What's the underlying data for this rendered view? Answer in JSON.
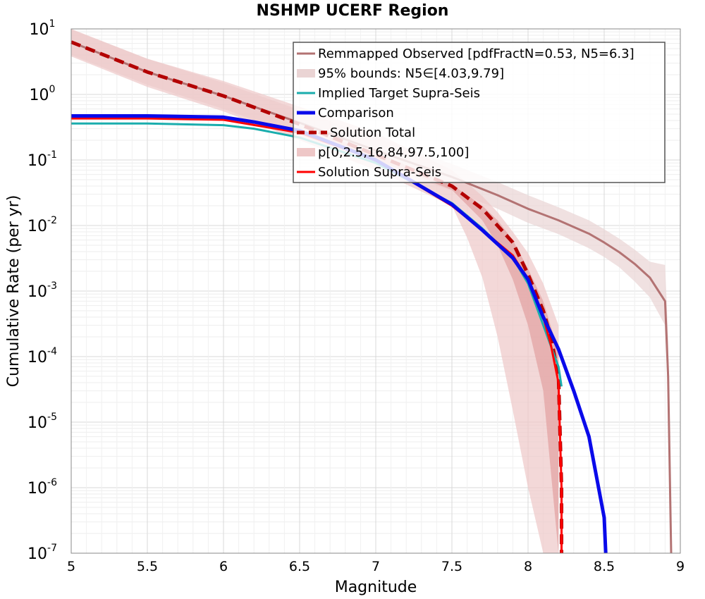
{
  "chart_data": {
    "type": "line",
    "title": "NSHMP UCERF Region",
    "xlabel": "Magnitude",
    "ylabel": "Cumulative Rate (per yr)",
    "xlim": [
      5,
      9
    ],
    "ylim": [
      1e-07,
      10
    ],
    "yscale": "log",
    "grid": true,
    "legend_position": "top-right",
    "x_ticks": [
      "5",
      "5.5",
      "6",
      "6.5",
      "7",
      "7.5",
      "8",
      "8.5",
      "9"
    ],
    "y_ticks": [
      {
        "base": "10",
        "exp": "1"
      },
      {
        "base": "10",
        "exp": "0"
      },
      {
        "base": "10",
        "exp": "-1"
      },
      {
        "base": "10",
        "exp": "-2"
      },
      {
        "base": "10",
        "exp": "-3"
      },
      {
        "base": "10",
        "exp": "-4"
      },
      {
        "base": "10",
        "exp": "-5"
      },
      {
        "base": "10",
        "exp": "-6"
      },
      {
        "base": "10",
        "exp": "-7"
      }
    ],
    "legend": [
      {
        "label": "Remmapped Observed [pdfFractN=0.53, N5=6.3]",
        "color": "#b37373",
        "style": "line"
      },
      {
        "label": "95% bounds: N5∈[4.03,9.79]",
        "color": "#ead4d4",
        "style": "band"
      },
      {
        "label": "Implied Target Supra-Seis",
        "color": "#1aadad",
        "style": "line"
      },
      {
        "label": "Comparison",
        "color": "#0a0aea",
        "style": "thick-line"
      },
      {
        "label": "Solution Total",
        "color": "#b30000",
        "style": "dashed"
      },
      {
        "label": "p[0,2.5,16,84,97.5,100]",
        "color": "#eec7c7",
        "style": "band"
      },
      {
        "label": "Solution Supra-Seis",
        "color": "#ff0000",
        "style": "line"
      }
    ],
    "series": [
      {
        "name": "Remmapped Observed [pdfFractN=0.53, N5=6.3]",
        "color": "#b37373",
        "x": [
          5.0,
          5.5,
          6.0,
          6.5,
          7.0,
          7.5,
          7.8,
          8.0,
          8.2,
          8.4,
          8.5,
          8.6,
          8.7,
          8.8,
          8.9,
          8.92,
          8.94
        ],
        "y": [
          6.3,
          2.2,
          0.95,
          0.37,
          0.14,
          0.055,
          0.029,
          0.018,
          0.012,
          0.0075,
          0.0055,
          0.0039,
          0.0026,
          0.0016,
          0.0007,
          5e-05,
          1e-07
        ]
      },
      {
        "name": "Solution Total",
        "color": "#b30000",
        "x": [
          5.0,
          5.5,
          6.0,
          6.5,
          7.0,
          7.5,
          7.7,
          7.9,
          8.0,
          8.1,
          8.15,
          8.2,
          8.22,
          8.22
        ],
        "y": [
          6.3,
          2.2,
          0.95,
          0.35,
          0.12,
          0.04,
          0.018,
          0.0055,
          0.0018,
          0.0005,
          0.0002,
          5e-05,
          1e-06,
          1e-07
        ]
      },
      {
        "name": "Implied Target Supra-Seis",
        "color": "#1aadad",
        "x": [
          5.0,
          5.5,
          6.0,
          6.2,
          6.5,
          7.0,
          7.5,
          7.7,
          7.9,
          8.0,
          8.1,
          8.2,
          8.22
        ],
        "y": [
          0.36,
          0.36,
          0.34,
          0.3,
          0.22,
          0.09,
          0.022,
          0.009,
          0.0032,
          0.0013,
          0.0003,
          7e-05,
          3.5e-05
        ]
      },
      {
        "name": "Solution Supra-Seis",
        "color": "#ff0000",
        "x": [
          5.0,
          5.5,
          6.0,
          6.5,
          7.0,
          7.5,
          7.7,
          7.9,
          8.0,
          8.1,
          8.15,
          8.2,
          8.22,
          8.22
        ],
        "y": [
          0.43,
          0.43,
          0.41,
          0.26,
          0.1,
          0.02,
          0.0085,
          0.0035,
          0.0015,
          0.0004,
          0.00015,
          4e-05,
          1e-06,
          1e-07
        ]
      },
      {
        "name": "Comparison",
        "color": "#0a0aea",
        "x": [
          5.0,
          5.5,
          6.0,
          6.2,
          6.5,
          7.0,
          7.5,
          7.7,
          7.9,
          8.0,
          8.1,
          8.2,
          8.3,
          8.4,
          8.5,
          8.51
        ],
        "y": [
          0.47,
          0.47,
          0.45,
          0.38,
          0.28,
          0.1,
          0.021,
          0.0085,
          0.0032,
          0.0015,
          0.0004,
          0.00013,
          3e-05,
          6e-06,
          3.5e-07,
          1e-07
        ]
      }
    ],
    "bands": [
      {
        "name": "95% bounds: N5∈[4.03,9.79]",
        "color": "#ead4d4",
        "x": [
          5.0,
          5.5,
          6.0,
          6.5,
          7.0,
          7.5,
          7.8,
          8.0,
          8.2,
          8.4,
          8.5,
          8.6,
          8.7,
          8.8,
          8.9,
          8.92,
          8.94
        ],
        "upper": [
          9.8,
          3.5,
          1.5,
          0.58,
          0.22,
          0.087,
          0.046,
          0.029,
          0.019,
          0.012,
          0.0088,
          0.0063,
          0.0043,
          0.0028,
          0.0025,
          0.0002,
          1e-07
        ],
        "lower": [
          4.0,
          1.4,
          0.6,
          0.23,
          0.088,
          0.034,
          0.018,
          0.011,
          0.0074,
          0.0045,
          0.0033,
          0.0023,
          0.0014,
          0.0008,
          0.0003,
          2e-05,
          1e-07
        ]
      },
      {
        "name": "p[0,2.5,16,84,97.5,100] outer",
        "color": "#eec7c7",
        "x": [
          5.0,
          5.5,
          6.0,
          6.5,
          7.0,
          7.5,
          7.6,
          7.7,
          7.8,
          7.9,
          8.0,
          8.1,
          8.2
        ],
        "upper": [
          10,
          3.5,
          1.6,
          0.65,
          0.26,
          0.07,
          0.045,
          0.028,
          0.016,
          0.008,
          0.0038,
          0.0013,
          0.0003
        ],
        "lower": [
          3.8,
          1.3,
          0.55,
          0.2,
          0.07,
          0.02,
          0.0065,
          0.0016,
          0.0002,
          1.5e-05,
          1e-06,
          1e-07,
          1e-07
        ]
      },
      {
        "name": "p[0,2.5,16,84,97.5,100] inner",
        "color": "#e3a8a8",
        "x": [
          6.7,
          7.0,
          7.5,
          7.7,
          7.8,
          7.9,
          8.0,
          8.1,
          8.2
        ],
        "upper": [
          0.22,
          0.13,
          0.042,
          0.02,
          0.012,
          0.006,
          0.0022,
          0.0007,
          0.00012
        ],
        "lower": [
          0.2,
          0.1,
          0.035,
          0.012,
          0.005,
          0.0015,
          0.0003,
          3e-05,
          1e-07
        ]
      }
    ]
  }
}
